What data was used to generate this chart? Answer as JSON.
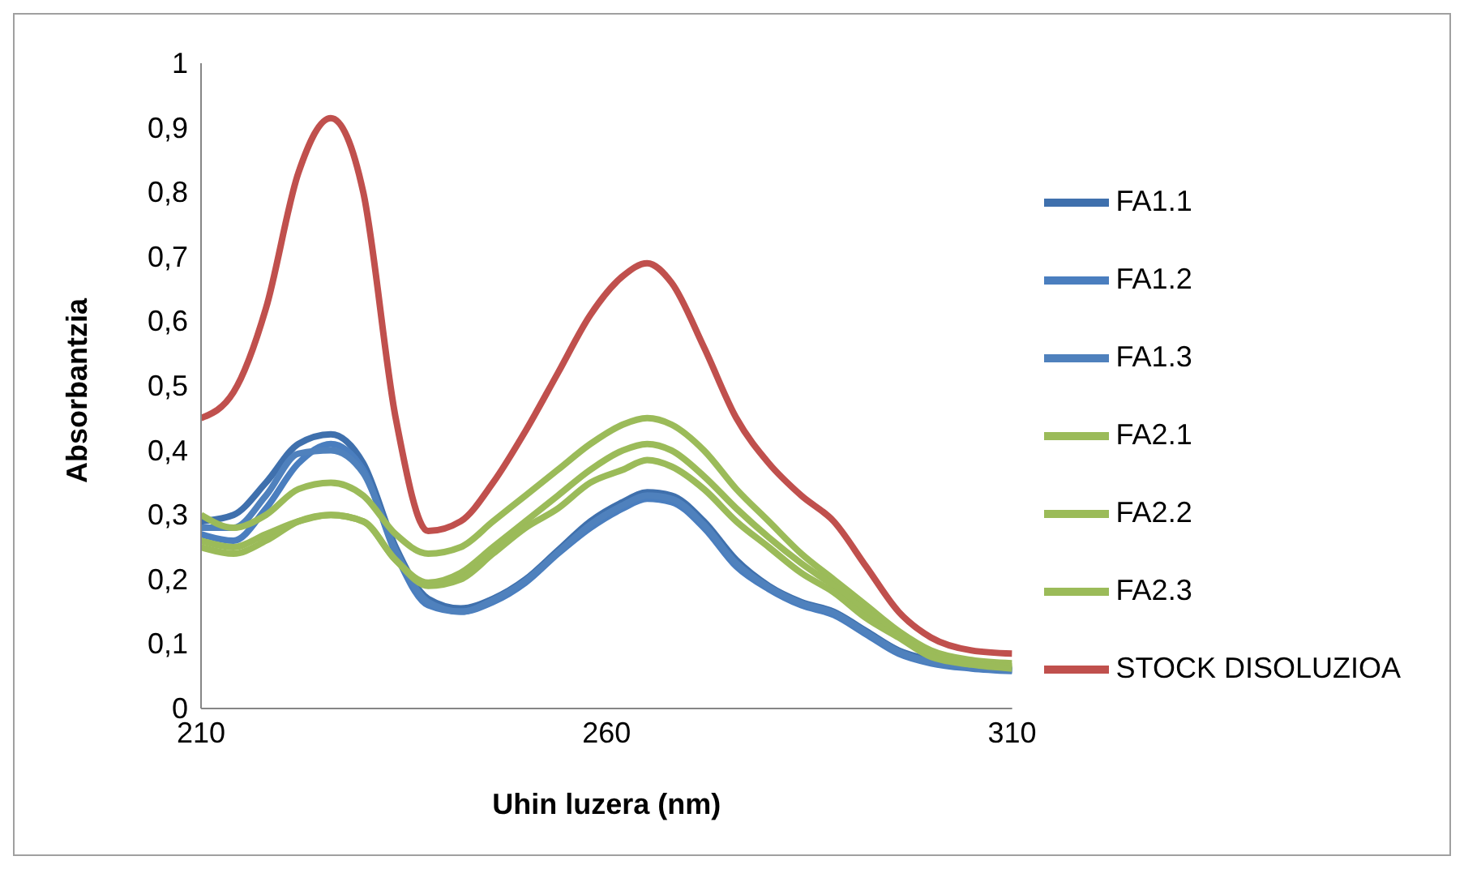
{
  "chart_data": {
    "type": "line",
    "xlabel": "Uhin luzera (nm)",
    "ylabel": "Absorbantzia",
    "legend": "right",
    "grid": false,
    "x": [
      210,
      214,
      218,
      222,
      226,
      230,
      234,
      238,
      242,
      246,
      250,
      254,
      258,
      262,
      265,
      268,
      272,
      276,
      280,
      284,
      288,
      292,
      296,
      300,
      305,
      310
    ],
    "xlim": [
      210,
      310
    ],
    "xticks": [
      210,
      260,
      310
    ],
    "ylim": [
      0,
      1
    ],
    "yticks": [
      0,
      {
        "value": 0.1,
        "label": "0,1"
      },
      {
        "value": 0.2,
        "label": "0,2"
      },
      {
        "value": 0.3,
        "label": "0,3"
      },
      {
        "value": 0.4,
        "label": "0,4"
      },
      {
        "value": 0.5,
        "label": "0,5"
      },
      {
        "value": 0.6,
        "label": "0,6"
      },
      {
        "value": 0.7,
        "label": "0,7"
      },
      {
        "value": 0.8,
        "label": "0,8"
      },
      {
        "value": 0.9,
        "label": "0,9"
      },
      1
    ],
    "series": [
      {
        "name": "FA1.1",
        "color": "#3f70ad",
        "values": [
          0.29,
          0.3,
          0.35,
          0.41,
          0.425,
          0.38,
          0.25,
          0.17,
          0.155,
          0.17,
          0.2,
          0.245,
          0.29,
          0.32,
          0.335,
          0.33,
          0.29,
          0.23,
          0.19,
          0.165,
          0.15,
          0.12,
          0.09,
          0.075,
          0.065,
          0.06
        ]
      },
      {
        "name": "FA1.2",
        "color": "#4a7ebf",
        "values": [
          0.27,
          0.26,
          0.31,
          0.38,
          0.41,
          0.37,
          0.24,
          0.16,
          0.15,
          0.165,
          0.195,
          0.24,
          0.28,
          0.31,
          0.325,
          0.32,
          0.28,
          0.22,
          0.185,
          0.16,
          0.145,
          0.115,
          0.085,
          0.07,
          0.062,
          0.058
        ]
      },
      {
        "name": "FA1.3",
        "color": "#4f81bd",
        "values": [
          0.28,
          0.28,
          0.33,
          0.395,
          0.4,
          0.365,
          0.245,
          0.165,
          0.15,
          0.168,
          0.198,
          0.242,
          0.285,
          0.315,
          0.33,
          0.325,
          0.285,
          0.225,
          0.188,
          0.163,
          0.148,
          0.118,
          0.088,
          0.072,
          0.064,
          0.059
        ]
      },
      {
        "name": "FA2.1",
        "color": "#9bbb59",
        "values": [
          0.3,
          0.28,
          0.3,
          0.34,
          0.35,
          0.33,
          0.27,
          0.24,
          0.25,
          0.29,
          0.33,
          0.37,
          0.41,
          0.44,
          0.45,
          0.44,
          0.4,
          0.34,
          0.29,
          0.24,
          0.2,
          0.16,
          0.12,
          0.09,
          0.075,
          0.07
        ]
      },
      {
        "name": "FA2.2",
        "color": "#9bbb59",
        "values": [
          0.25,
          0.24,
          0.26,
          0.29,
          0.3,
          0.29,
          0.23,
          0.195,
          0.21,
          0.25,
          0.29,
          0.33,
          0.37,
          0.4,
          0.41,
          0.4,
          0.36,
          0.31,
          0.265,
          0.225,
          0.19,
          0.15,
          0.115,
          0.085,
          0.07,
          0.065
        ]
      },
      {
        "name": "FA2.3",
        "color": "#9bbb59",
        "values": [
          0.26,
          0.25,
          0.27,
          0.29,
          0.3,
          0.29,
          0.23,
          0.19,
          0.2,
          0.24,
          0.28,
          0.31,
          0.35,
          0.37,
          0.385,
          0.375,
          0.34,
          0.29,
          0.25,
          0.21,
          0.18,
          0.14,
          0.11,
          0.08,
          0.068,
          0.062
        ]
      },
      {
        "name": "STOCK DISOLUZIOA",
        "color": "#c0504d",
        "values": [
          0.45,
          0.49,
          0.62,
          0.83,
          0.915,
          0.8,
          0.45,
          0.275,
          0.29,
          0.35,
          0.43,
          0.52,
          0.61,
          0.67,
          0.69,
          0.66,
          0.56,
          0.45,
          0.38,
          0.33,
          0.29,
          0.22,
          0.15,
          0.11,
          0.09,
          0.085
        ]
      }
    ]
  }
}
